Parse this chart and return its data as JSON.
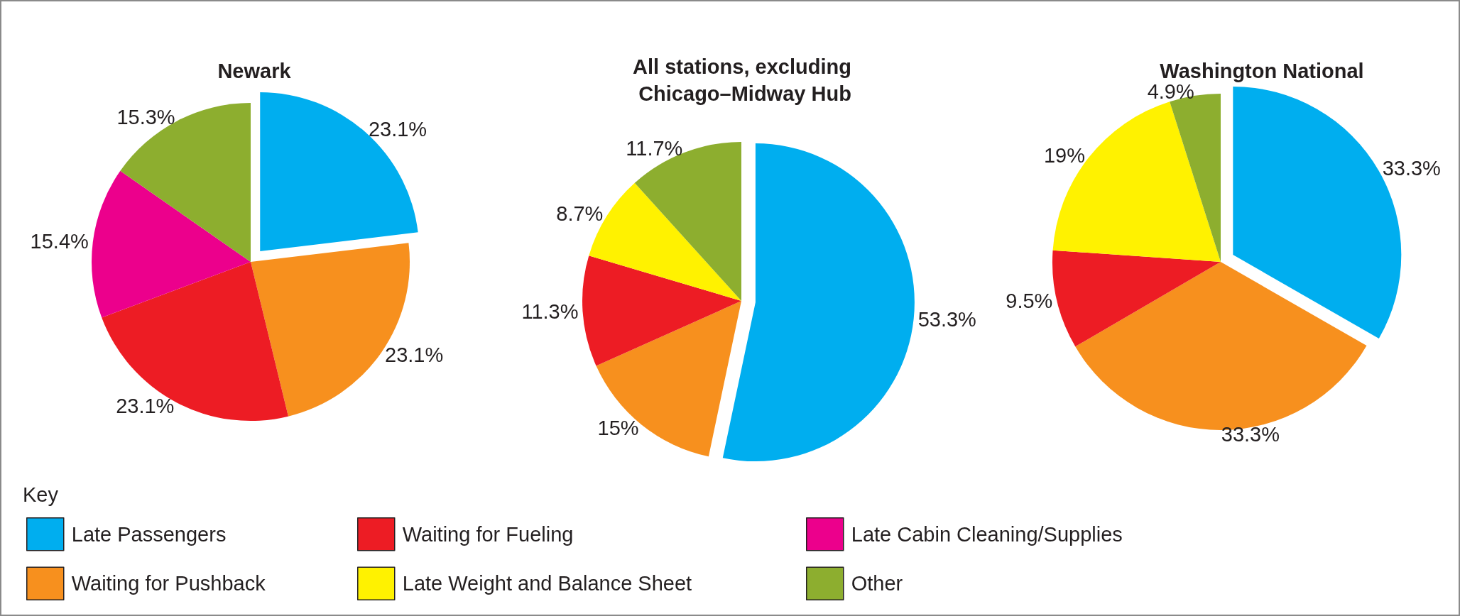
{
  "chart_data": [
    {
      "type": "pie",
      "title": "Newark",
      "legend": "bottom",
      "legend_title": "Key",
      "categories": [
        "Late Passengers",
        "Waiting for Pushback",
        "Waiting for Fueling",
        "Late Weight and Balance Sheet",
        "Late Cabin Cleaning/Supplies",
        "Other"
      ],
      "values": [
        23.1,
        23.1,
        23.1,
        null,
        15.4,
        15.3
      ],
      "value_labels": [
        "23.1%",
        "23.1%",
        "23.1%",
        null,
        "15.4%",
        "15.3%"
      ],
      "colors": [
        "#00aeef",
        "#f7901e",
        "#ed1c24",
        "#fff200",
        "#ec008c",
        "#8dae2f"
      ]
    },
    {
      "type": "pie",
      "title": "All stations, excluding Chicago–Midway Hub",
      "categories": [
        null,
        null,
        null,
        null,
        null,
        null
      ],
      "values": [
        53.3,
        15,
        11.3,
        8.7,
        null,
        11.7
      ],
      "value_labels": [
        "53.3%",
        "15%",
        "11.3%",
        "8.7%",
        null,
        "11.7%"
      ],
      "colors": [
        "#00aeef",
        "#f7901e",
        "#ed1c24",
        "#fff200",
        "#ec008c",
        "#8dae2f"
      ]
    },
    {
      "type": "pie",
      "title": "Washington National",
      "categories": [
        null,
        null,
        null,
        null,
        null,
        null
      ],
      "values": [
        33.3,
        33.3,
        9.5,
        19,
        null,
        4.9
      ],
      "value_labels": [
        "33.3%",
        "33.3%",
        "9.5%",
        "19%",
        null,
        "4.9%"
      ],
      "colors": [
        "#00aeef",
        "#f7901e",
        "#ed1c24",
        "#fff200",
        "#ec008c",
        "#8dae2f"
      ]
    }
  ]
}
